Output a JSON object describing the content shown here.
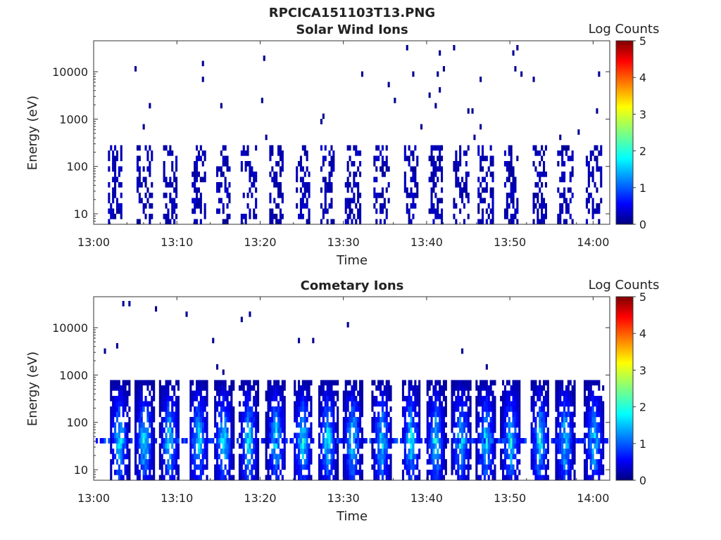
{
  "figure": {
    "title": "RPCICA151103T13.PNG"
  },
  "colormap": [
    "#00007f",
    "#0000ff",
    "#007fff",
    "#00ffff",
    "#7fff7f",
    "#ffff00",
    "#ff7f00",
    "#ff0000",
    "#7f0000"
  ],
  "chart_data": [
    {
      "type": "heatmap",
      "id": "solar",
      "title": "Solar Wind Ions",
      "xlabel": "Time",
      "ylabel": "Energy (eV)",
      "x_ticks": [
        "13:00",
        "13:10",
        "13:20",
        "13:30",
        "13:40",
        "13:50",
        "14:00"
      ],
      "x_range_minutes": [
        0,
        62
      ],
      "y_scale": "log",
      "y_ticks": [
        {
          "value": 10,
          "label": "10"
        },
        {
          "value": 100,
          "label": "100"
        },
        {
          "value": 1000,
          "label": "1000"
        },
        {
          "value": 10000,
          "label": "10000"
        }
      ],
      "y_range": [
        6,
        45000
      ],
      "colorbar": {
        "label": "Log Counts",
        "min": 0,
        "max": 5,
        "ticks": [
          "0",
          "1",
          "2",
          "3",
          "4",
          "5"
        ]
      },
      "bursts": [
        2.5,
        6,
        9,
        12.5,
        15.5,
        18.5,
        21.8,
        25,
        28,
        31,
        34.5,
        38,
        41,
        44,
        47,
        50,
        53.5,
        56.5,
        60
      ],
      "burst_peak_energy_eV": 300,
      "burst_peak_log_counts": 0.5,
      "burst_pattern": "narrow columns of counts ~10-300 eV, sparse dots up to ~20000 eV"
    },
    {
      "type": "heatmap",
      "id": "cometary",
      "title": "Cometary Ions",
      "xlabel": "Time",
      "ylabel": "Energy (eV)",
      "x_ticks": [
        "13:00",
        "13:10",
        "13:20",
        "13:30",
        "13:40",
        "13:50",
        "14:00"
      ],
      "x_range_minutes": [
        0,
        62
      ],
      "y_scale": "log",
      "y_ticks": [
        {
          "value": 10,
          "label": "10"
        },
        {
          "value": 100,
          "label": "100"
        },
        {
          "value": 1000,
          "label": "1000"
        },
        {
          "value": 10000,
          "label": "10000"
        }
      ],
      "y_range": [
        6,
        45000
      ],
      "colorbar": {
        "label": "Log Counts",
        "min": 0,
        "max": 5,
        "ticks": [
          "0",
          "1",
          "2",
          "3",
          "4",
          "5"
        ]
      },
      "bursts": [
        3,
        6,
        9,
        12.5,
        15.5,
        18.5,
        21.8,
        25,
        28,
        31,
        34.5,
        38,
        41,
        44,
        47,
        50,
        53.5,
        56.5,
        60
      ],
      "burst_peak_energy_eV": 700,
      "burst_peak_log_counts": 2,
      "band_energy_eV": 40,
      "burst_pattern": "repeating columns ~6-700 eV with intensity up to ~2 at ~30-60 eV, continuous band near 40 eV"
    }
  ]
}
